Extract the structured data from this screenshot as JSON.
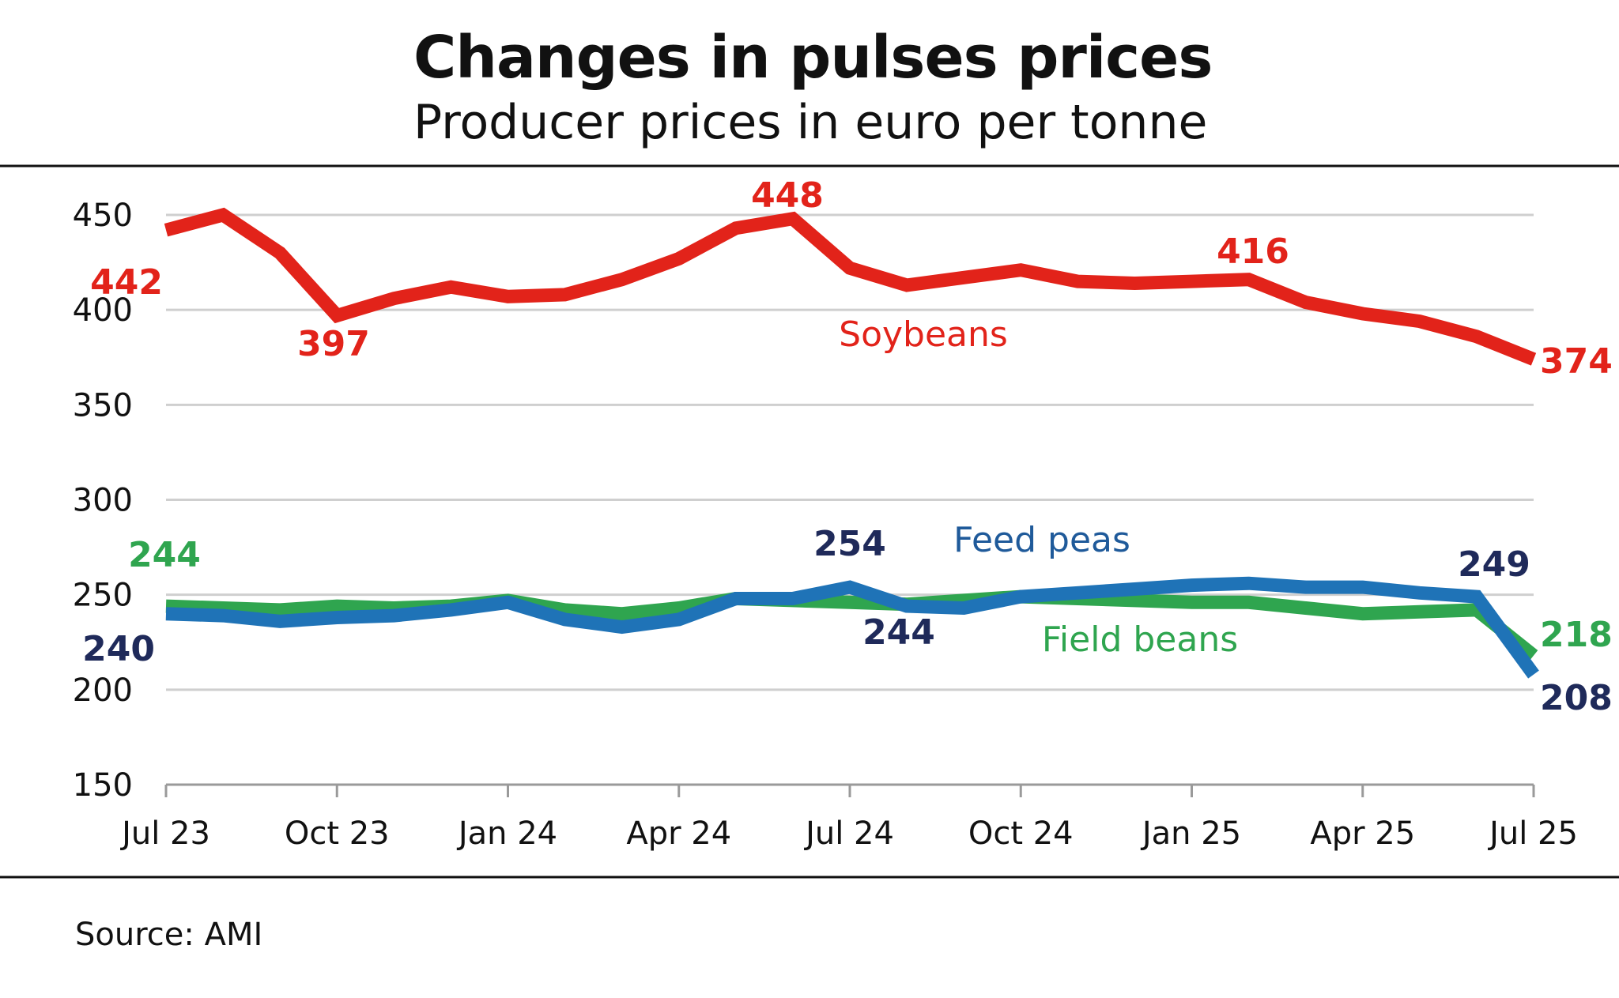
{
  "title": "Changes in pulses prices",
  "subtitle": "Producer prices in euro per tonne",
  "source": "Source: AMI",
  "chart_data": {
    "type": "line",
    "title": "Changes in pulses prices",
    "subtitle": "Producer prices in euro per tonne",
    "xlabel": "",
    "ylabel": "",
    "ylim": [
      150,
      450
    ],
    "yticks": [
      "450",
      "400",
      "350",
      "300",
      "250",
      "200",
      "150"
    ],
    "x": [
      "Jul 23",
      "Aug 23",
      "Sep 23",
      "Oct 23",
      "Nov 23",
      "Dec 23",
      "Jan 24",
      "Feb 24",
      "Mar 24",
      "Apr 24",
      "May 24",
      "Jun 24",
      "Jul 24",
      "Aug 24",
      "Sep 24",
      "Oct 24",
      "Nov 24",
      "Dec 24",
      "Jan 25",
      "Feb 25",
      "Mar 25",
      "Apr 25",
      "May 25",
      "Jun 25",
      "Jul 25"
    ],
    "xtick_labels": [
      "Jul 23",
      "Oct 23",
      "Jan 24",
      "Apr 24",
      "Jul 24",
      "Oct 24",
      "Jan 25",
      "Apr 25",
      "Jul 25"
    ],
    "grid": true,
    "series": [
      {
        "name": "Soybeans",
        "color": "#e2231a",
        "values": [
          442,
          450,
          430,
          397,
          406,
          412,
          407,
          408,
          416,
          427,
          443,
          448,
          422,
          413,
          417,
          421,
          415,
          414,
          415,
          416,
          404,
          398,
          394,
          386,
          374
        ]
      },
      {
        "name": "Field beans",
        "color": "#2fa54f",
        "values": [
          244,
          243,
          242,
          244,
          243,
          244,
          247,
          242,
          240,
          243,
          248,
          247,
          246,
          245,
          247,
          249,
          248,
          247,
          246,
          246,
          243,
          240,
          241,
          242,
          218
        ]
      },
      {
        "name": "Feed peas",
        "color": "#1f73b7",
        "values": [
          240,
          239,
          236,
          238,
          239,
          242,
          246,
          237,
          233,
          237,
          248,
          248,
          254,
          244,
          243,
          249,
          251,
          253,
          255,
          256,
          254,
          254,
          251,
          249,
          208
        ]
      }
    ],
    "data_labels": [
      {
        "series": "Soybeans",
        "text": "442",
        "color": "#e2231a"
      },
      {
        "series": "Soybeans",
        "text": "397",
        "color": "#e2231a"
      },
      {
        "series": "Soybeans",
        "text": "448",
        "color": "#e2231a"
      },
      {
        "series": "Soybeans",
        "text": "416",
        "color": "#e2231a"
      },
      {
        "series": "Soybeans",
        "text": "374",
        "color": "#e2231a"
      },
      {
        "series": "Field beans",
        "text": "244",
        "color": "#2fa54f"
      },
      {
        "series": "Field beans",
        "text": "218",
        "color": "#2fa54f"
      },
      {
        "series": "Feed peas",
        "text": "240",
        "color": "#1f2a5a"
      },
      {
        "series": "Feed peas",
        "text": "254",
        "color": "#1f2a5a"
      },
      {
        "series": "Feed peas",
        "text": "244",
        "color": "#1f2a5a"
      },
      {
        "series": "Feed peas",
        "text": "249",
        "color": "#1f2a5a"
      },
      {
        "series": "Feed peas",
        "text": "208",
        "color": "#1f2a5a"
      }
    ],
    "series_labels": [
      {
        "text": "Soybeans",
        "color": "#e2231a"
      },
      {
        "text": "Feed peas",
        "color": "#1f5a9a"
      },
      {
        "text": "Field beans",
        "color": "#2fa54f"
      }
    ]
  }
}
